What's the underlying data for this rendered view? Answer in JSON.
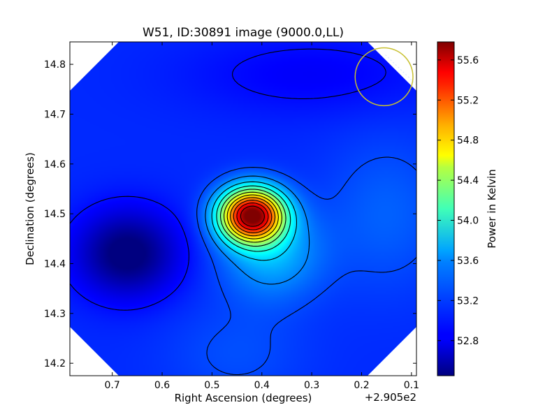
{
  "chart_data": {
    "type": "heatmap",
    "title": "W51, ID:30891 image (9000.0,LL)",
    "xlabel": "Right Ascension (degrees)",
    "ylabel": "Declination (degrees)",
    "x_offset_label": "+2.905e2",
    "colorbar_label": "Power in Kelvin",
    "colormap": "jet",
    "xlim": [
      0.785,
      0.09
    ],
    "ylim": [
      14.175,
      14.845
    ],
    "x_ticks": [
      "0.7",
      "0.6",
      "0.5",
      "0.4",
      "0.3",
      "0.2",
      "0.1"
    ],
    "x_tick_values": [
      0.7,
      0.6,
      0.5,
      0.4,
      0.3,
      0.2,
      0.1
    ],
    "y_ticks": [
      "14.2",
      "14.3",
      "14.4",
      "14.5",
      "14.6",
      "14.7",
      "14.8"
    ],
    "y_tick_values": [
      14.2,
      14.3,
      14.4,
      14.5,
      14.6,
      14.7,
      14.8
    ],
    "colorbar_range": [
      52.45,
      55.78
    ],
    "colorbar_ticks": [
      "52.8",
      "53.2",
      "53.6",
      "54.0",
      "54.4",
      "54.8",
      "55.2",
      "55.6"
    ],
    "colorbar_tick_values": [
      52.8,
      53.2,
      53.6,
      54.0,
      54.4,
      54.8,
      55.2,
      55.6
    ],
    "peak": {
      "ra": 0.42,
      "dec": 14.497,
      "value": 55.75
    },
    "minimum_region": {
      "ra": 0.67,
      "dec": 14.42,
      "value": 52.45
    },
    "contour_levels": [
      52.9,
      53.1,
      53.3,
      53.55,
      53.8,
      54.05,
      54.3,
      54.55,
      54.8,
      55.05,
      55.3,
      55.55
    ],
    "beam_marker": {
      "ra": 0.155,
      "dec": 14.775,
      "radius": 0.058,
      "color": "#c8c030"
    }
  },
  "colors": {
    "axes": "#000000",
    "contour": "#000000",
    "background": "#ffffff"
  }
}
